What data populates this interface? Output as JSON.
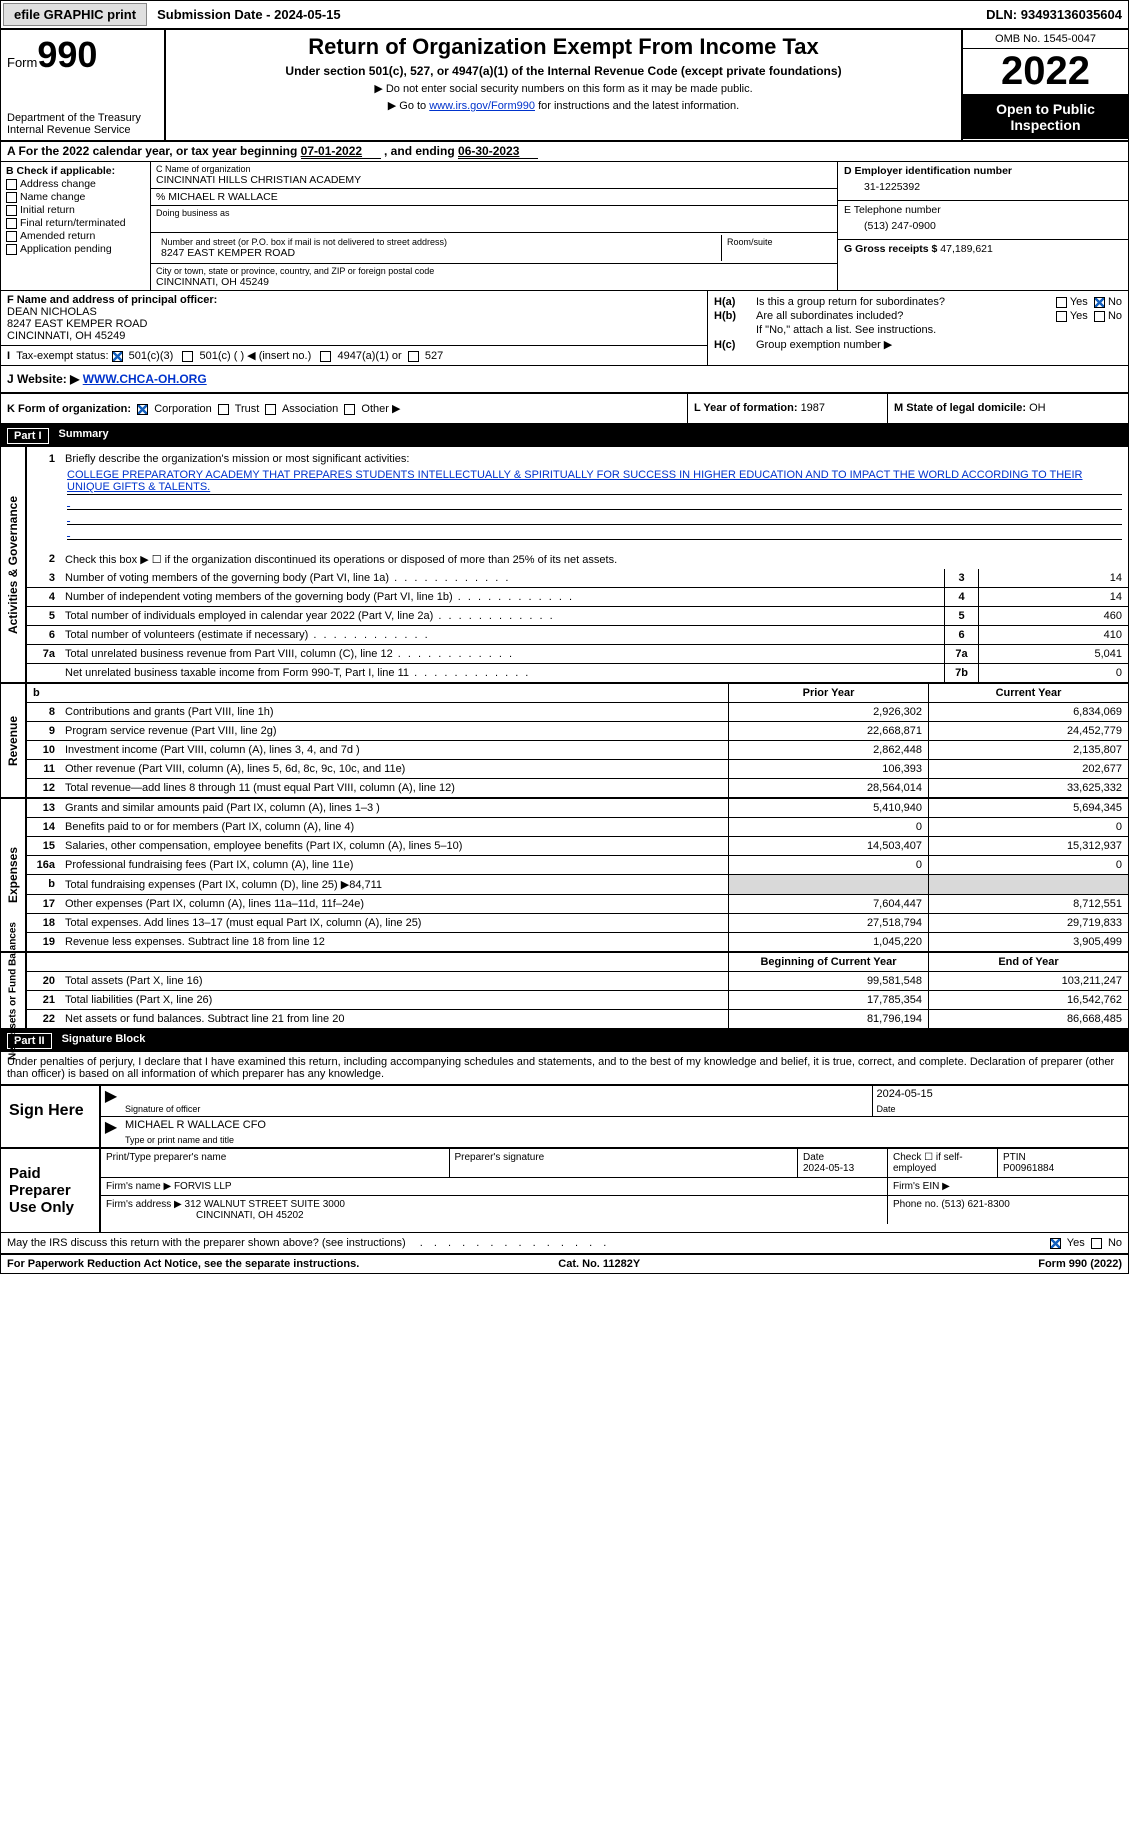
{
  "topbar": {
    "efile_btn": "efile GRAPHIC print",
    "sub_date_label": "Submission Date - ",
    "sub_date": "2024-05-15",
    "dln_label": "DLN: ",
    "dln": "93493136035604"
  },
  "header": {
    "form_word": "Form",
    "form_no": "990",
    "dept": "Department of the Treasury",
    "irs": "Internal Revenue Service",
    "title": "Return of Organization Exempt From Income Tax",
    "sub": "Under section 501(c), 527, or 4947(a)(1) of the Internal Revenue Code (except private foundations)",
    "note1": "▶ Do not enter social security numbers on this form as it may be made public.",
    "note2_pre": "▶ Go to ",
    "note2_link": "www.irs.gov/Form990",
    "note2_post": " for instructions and the latest information.",
    "omb": "OMB No. 1545-0047",
    "year": "2022",
    "open1": "Open to Public",
    "open2": "Inspection"
  },
  "rowA": {
    "pre": "A For the 2022 calendar year, or tax year beginning ",
    "begin": "07-01-2022",
    "mid": " , and ending ",
    "end": "06-30-2023"
  },
  "colB": {
    "hdr": "B Check if applicable:",
    "o1": "Address change",
    "o2": "Name change",
    "o3": "Initial return",
    "o4": "Final return/terminated",
    "o5": "Amended return",
    "o6": "Application pending"
  },
  "colC": {
    "name_lbl": "C Name of organization",
    "name": "CINCINNATI HILLS CHRISTIAN ACADEMY",
    "care_of": "% MICHAEL R WALLACE",
    "dba_lbl": "Doing business as",
    "addr_lbl": "Number and street (or P.O. box if mail is not delivered to street address)",
    "addr": "8247 EAST KEMPER ROAD",
    "room_lbl": "Room/suite",
    "city_lbl": "City or town, state or province, country, and ZIP or foreign postal code",
    "city": "CINCINNATI, OH  45249"
  },
  "colD": {
    "d_lbl": "D Employer identification number",
    "ein": "31-1225392",
    "e_lbl": "E Telephone number",
    "phone": "(513) 247-0900",
    "g_lbl": "G Gross receipts $ ",
    "gross": "47,189,621"
  },
  "f": {
    "lbl": "F  Name and address of principal officer:",
    "name": "DEAN NICHOLAS",
    "addr1": "8247 EAST KEMPER ROAD",
    "addr2": "CINCINNATI, OH  45249"
  },
  "h": {
    "ha_lbl": "H(a)",
    "ha_txt": "Is this a group return for subordinates?",
    "ha_no_checked": true,
    "hb_lbl": "H(b)",
    "hb_txt": "Are all subordinates included?",
    "hb_note": "If \"No,\" attach a list. See instructions.",
    "hc_lbl": "H(c)",
    "hc_txt": "Group exemption number ▶"
  },
  "i": {
    "lbl": "Tax-exempt status:",
    "o1": "501(c)(3)",
    "o2": "501(c) (  ) ◀ (insert no.)",
    "o3": "4947(a)(1) or",
    "o4": "527"
  },
  "j": {
    "lbl": "J   Website: ▶  ",
    "url": "WWW.CHCA-OH.ORG"
  },
  "k": {
    "lbl": "K Form of organization:",
    "o1": "Corporation",
    "o2": "Trust",
    "o3": "Association",
    "o4": "Other ▶"
  },
  "l": {
    "lbl": "L Year of formation: ",
    "val": "1987"
  },
  "m": {
    "lbl": "M State of legal domicile: ",
    "val": "OH"
  },
  "part1_hdr": {
    "pn": "Part I",
    "title": "Summary"
  },
  "vtabs": {
    "v1": "Activities & Governance",
    "v2": "Revenue",
    "v3": "Expenses",
    "v4": "Net Assets or Fund Balances"
  },
  "line1": {
    "n": "1",
    "t": "Briefly describe the organization's mission or most significant activities:",
    "mission": "COLLEGE PREPARATORY ACADEMY THAT PREPARES STUDENTS INTELLECTUALLY & SPIRITUALLY FOR SUCCESS IN HIGHER EDUCATION AND TO IMPACT THE WORLD ACCORDING TO THEIR UNIQUE GIFTS & TALENTS."
  },
  "line2": {
    "n": "2",
    "t": "Check this box ▶ ☐  if the organization discontinued its operations or disposed of more than 25% of its net assets."
  },
  "lines_ag": [
    {
      "n": "3",
      "t": "Number of voting members of the governing body (Part VI, line 1a)",
      "box": "3",
      "val": "14"
    },
    {
      "n": "4",
      "t": "Number of independent voting members of the governing body (Part VI, line 1b)",
      "box": "4",
      "val": "14"
    },
    {
      "n": "5",
      "t": "Total number of individuals employed in calendar year 2022 (Part V, line 2a)",
      "box": "5",
      "val": "460"
    },
    {
      "n": "6",
      "t": "Total number of volunteers (estimate if necessary)",
      "box": "6",
      "val": "410"
    },
    {
      "n": "7a",
      "t": "Total unrelated business revenue from Part VIII, column (C), line 12",
      "box": "7a",
      "val": "5,041"
    },
    {
      "n": "",
      "t": "Net unrelated business taxable income from Form 990-T, Part I, line 11",
      "box": "7b",
      "val": "0"
    }
  ],
  "colhdr": {
    "b": "b",
    "prior": "Prior Year",
    "current": "Current Year"
  },
  "revenue": [
    {
      "n": "8",
      "t": "Contributions and grants (Part VIII, line 1h)",
      "p": "2,926,302",
      "c": "6,834,069"
    },
    {
      "n": "9",
      "t": "Program service revenue (Part VIII, line 2g)",
      "p": "22,668,871",
      "c": "24,452,779"
    },
    {
      "n": "10",
      "t": "Investment income (Part VIII, column (A), lines 3, 4, and 7d )",
      "p": "2,862,448",
      "c": "2,135,807"
    },
    {
      "n": "11",
      "t": "Other revenue (Part VIII, column (A), lines 5, 6d, 8c, 9c, 10c, and 11e)",
      "p": "106,393",
      "c": "202,677"
    },
    {
      "n": "12",
      "t": "Total revenue—add lines 8 through 11 (must equal Part VIII, column (A), line 12)",
      "p": "28,564,014",
      "c": "33,625,332"
    }
  ],
  "expenses": [
    {
      "n": "13",
      "t": "Grants and similar amounts paid (Part IX, column (A), lines 1–3 )",
      "p": "5,410,940",
      "c": "5,694,345"
    },
    {
      "n": "14",
      "t": "Benefits paid to or for members (Part IX, column (A), line 4)",
      "p": "0",
      "c": "0"
    },
    {
      "n": "15",
      "t": "Salaries, other compensation, employee benefits (Part IX, column (A), lines 5–10)",
      "p": "14,503,407",
      "c": "15,312,937"
    },
    {
      "n": "16a",
      "t": "Professional fundraising fees (Part IX, column (A), line 11e)",
      "p": "0",
      "c": "0"
    },
    {
      "n": "b",
      "t": "Total fundraising expenses (Part IX, column (D), line 25) ▶84,711",
      "p": "",
      "c": "",
      "gray": true
    },
    {
      "n": "17",
      "t": "Other expenses (Part IX, column (A), lines 11a–11d, 11f–24e)",
      "p": "7,604,447",
      "c": "8,712,551"
    },
    {
      "n": "18",
      "t": "Total expenses. Add lines 13–17 (must equal Part IX, column (A), line 25)",
      "p": "27,518,794",
      "c": "29,719,833"
    },
    {
      "n": "19",
      "t": "Revenue less expenses. Subtract line 18 from line 12",
      "p": "1,045,220",
      "c": "3,905,499"
    }
  ],
  "na_hdr": {
    "b": "Beginning of Current Year",
    "e": "End of Year"
  },
  "netassets": [
    {
      "n": "20",
      "t": "Total assets (Part X, line 16)",
      "p": "99,581,548",
      "c": "103,211,247"
    },
    {
      "n": "21",
      "t": "Total liabilities (Part X, line 26)",
      "p": "17,785,354",
      "c": "16,542,762"
    },
    {
      "n": "22",
      "t": "Net assets or fund balances. Subtract line 21 from line 20",
      "p": "81,796,194",
      "c": "86,668,485"
    }
  ],
  "part2_hdr": {
    "pn": "Part II",
    "title": "Signature Block"
  },
  "sig_para": "Under penalties of perjury, I declare that I have examined this return, including accompanying schedules and statements, and to the best of my knowledge and belief, it is true, correct, and complete. Declaration of preparer (other than officer) is based on all information of which preparer has any knowledge.",
  "sign": {
    "here": "Sign Here",
    "sig_lbl": "Signature of officer",
    "date": "2024-05-15",
    "date_lbl": "Date",
    "name": "MICHAEL R WALLACE CFO",
    "name_lbl": "Type or print name and title"
  },
  "prep": {
    "lab": "Paid Preparer Use Only",
    "col1": "Print/Type preparer's name",
    "col2": "Preparer's signature",
    "col3_lbl": "Date",
    "col3": "2024-05-13",
    "col4": "Check ☐ if self-employed",
    "col5_lbl": "PTIN",
    "col5": "P00961884",
    "firm_lbl": "Firm's name    ▶ ",
    "firm": "FORVIS LLP",
    "ein_lbl": "Firm's EIN ▶",
    "addr_lbl": "Firm's address ▶ ",
    "addr1": "312 WALNUT STREET SUITE 3000",
    "addr2": "CINCINNATI, OH  45202",
    "phone_lbl": "Phone no. ",
    "phone": "(513) 621-8300"
  },
  "may": {
    "txt": "May the IRS discuss this return with the preparer shown above? (see instructions)",
    "yes": "Yes",
    "no": "No"
  },
  "footer": {
    "l": "For Paperwork Reduction Act Notice, see the separate instructions.",
    "m": "Cat. No. 11282Y",
    "r": "Form 990 (2022)"
  },
  "yn": {
    "yes": "Yes",
    "no": "No"
  }
}
